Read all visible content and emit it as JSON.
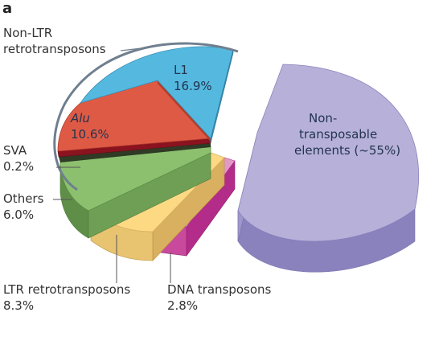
{
  "panel_label": "a",
  "chart_data": {
    "type": "pie",
    "title": "",
    "slices": [
      {
        "key": "l1",
        "name": "L1",
        "value": "16.9%",
        "color": "#55b9df",
        "side": "#3d8fb3",
        "group": "Non-LTR retrotransposons"
      },
      {
        "key": "alu",
        "name": "Alu",
        "value": "10.6%",
        "color": "#df5a45",
        "side": "#b23d2c",
        "group": "Non-LTR retrotransposons"
      },
      {
        "key": "sva",
        "name": "SVA",
        "value": "0.2%",
        "color": "#8b1320",
        "side": "#5f0c16",
        "group": "Non-LTR retrotransposons"
      },
      {
        "key": "others",
        "name": "Others",
        "value": "6.0%",
        "color": "#8cc06e",
        "side": "#5f8e48",
        "group": "Non-LTR retrotransposons"
      },
      {
        "key": "ltr",
        "name": "LTR retrotransposons",
        "value": "8.3%",
        "color": "#fdd984",
        "side": "#d9b05f"
      },
      {
        "key": "dna",
        "name": "DNA transposons",
        "value": "2.8%",
        "color": "#e19ac6",
        "side": "#b42c89"
      },
      {
        "key": "nontransposable",
        "name": "Non-transposable elements (~55%)",
        "value": "~55%",
        "color": "#b7b1d9",
        "side": "#8a82bd",
        "exploded": true
      }
    ],
    "group_label": "Non-LTR retrotransposons",
    "annotations": {
      "l1_name": "L1",
      "l1_value": "16.9%",
      "alu_name": "Alu",
      "alu_value": "10.6%",
      "sva_name": "SVA",
      "sva_value": "0.2%",
      "others_name": "Others",
      "others_value": "6.0%",
      "ltr_name": "LTR retrotransposons",
      "ltr_value": "8.3%",
      "dna_name": "DNA transposons",
      "dna_value": "2.8%",
      "nontransposable_line1": "Non-",
      "nontransposable_line2": "transposable",
      "nontransposable_line3": "elements (~55%)",
      "group_line1": "Non-LTR",
      "group_line2": "retrotransposons"
    }
  }
}
